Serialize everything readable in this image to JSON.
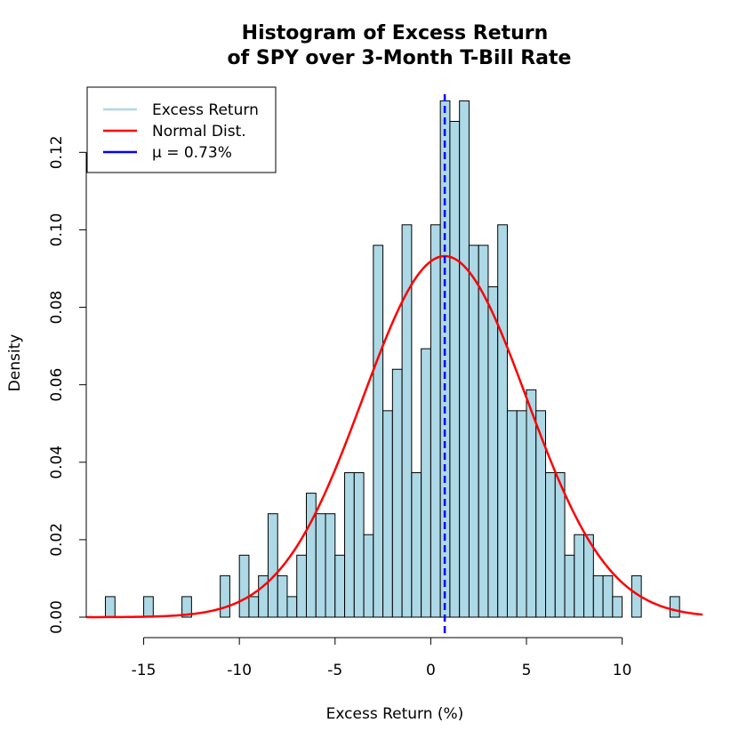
{
  "chart_data": {
    "type": "bar",
    "title": [
      "Histogram of Excess Return",
      "of SPY over 3-Month T-Bill Rate"
    ],
    "xlabel": "Excess Return (%)",
    "ylabel": "Density",
    "xlim": [
      -18,
      14.2
    ],
    "ylim": [
      0,
      0.135
    ],
    "xticks": [
      -15,
      -10,
      -5,
      0,
      5,
      10
    ],
    "xtick_labels": [
      "-15",
      "-10",
      "-5",
      "0",
      "5",
      "10"
    ],
    "yticks": [
      0.0,
      0.02,
      0.04,
      0.06,
      0.08,
      0.1,
      0.12
    ],
    "ytick_labels": [
      "0.00",
      "0.02",
      "0.04",
      "0.06",
      "0.08",
      "0.10",
      "0.12"
    ],
    "bin_width": 0.5,
    "bars": [
      {
        "x0": -17.0,
        "density": 0.0053
      },
      {
        "x0": -15.0,
        "density": 0.0053
      },
      {
        "x0": -13.0,
        "density": 0.0053
      },
      {
        "x0": -11.0,
        "density": 0.0107
      },
      {
        "x0": -10.0,
        "density": 0.016
      },
      {
        "x0": -9.5,
        "density": 0.0053
      },
      {
        "x0": -9.0,
        "density": 0.0107
      },
      {
        "x0": -8.5,
        "density": 0.0267
      },
      {
        "x0": -8.0,
        "density": 0.0107
      },
      {
        "x0": -7.5,
        "density": 0.0053
      },
      {
        "x0": -7.0,
        "density": 0.016
      },
      {
        "x0": -6.5,
        "density": 0.032
      },
      {
        "x0": -6.0,
        "density": 0.0267
      },
      {
        "x0": -5.5,
        "density": 0.0267
      },
      {
        "x0": -5.0,
        "density": 0.016
      },
      {
        "x0": -4.5,
        "density": 0.0373
      },
      {
        "x0": -4.0,
        "density": 0.0373
      },
      {
        "x0": -3.5,
        "density": 0.0213
      },
      {
        "x0": -3.0,
        "density": 0.096
      },
      {
        "x0": -2.5,
        "density": 0.0533
      },
      {
        "x0": -2.0,
        "density": 0.064
      },
      {
        "x0": -1.5,
        "density": 0.1013
      },
      {
        "x0": -1.0,
        "density": 0.0373
      },
      {
        "x0": -0.5,
        "density": 0.0693
      },
      {
        "x0": 0.0,
        "density": 0.1013
      },
      {
        "x0": 0.5,
        "density": 0.1333
      },
      {
        "x0": 1.0,
        "density": 0.128
      },
      {
        "x0": 1.5,
        "density": 0.1333
      },
      {
        "x0": 2.0,
        "density": 0.096
      },
      {
        "x0": 2.5,
        "density": 0.096
      },
      {
        "x0": 3.0,
        "density": 0.0853
      },
      {
        "x0": 3.5,
        "density": 0.1013
      },
      {
        "x0": 4.0,
        "density": 0.0533
      },
      {
        "x0": 4.5,
        "density": 0.0533
      },
      {
        "x0": 5.0,
        "density": 0.0587
      },
      {
        "x0": 5.5,
        "density": 0.0533
      },
      {
        "x0": 6.0,
        "density": 0.0373
      },
      {
        "x0": 6.5,
        "density": 0.0373
      },
      {
        "x0": 7.0,
        "density": 0.016
      },
      {
        "x0": 7.5,
        "density": 0.0213
      },
      {
        "x0": 8.0,
        "density": 0.0213
      },
      {
        "x0": 8.5,
        "density": 0.0107
      },
      {
        "x0": 9.0,
        "density": 0.0107
      },
      {
        "x0": 9.5,
        "density": 0.0053
      },
      {
        "x0": 10.5,
        "density": 0.0107
      },
      {
        "x0": 12.5,
        "density": 0.0053
      }
    ],
    "normal_curve": {
      "mean": 0.73,
      "sd": 4.28,
      "color": "#ff0000"
    },
    "mean_line": {
      "x": 0.73,
      "color": "#0000ff",
      "style": "dashed"
    },
    "legend": {
      "placement": "top-left",
      "entries": [
        {
          "label": "Excess Return",
          "color": "#ADD8E6"
        },
        {
          "label": "Normal Dist.",
          "color": "#ff0000"
        },
        {
          "label": "μ = 0.73%",
          "color": "#0000ff"
        }
      ]
    },
    "bar_color": "#ADD8E6",
    "grid": false
  }
}
